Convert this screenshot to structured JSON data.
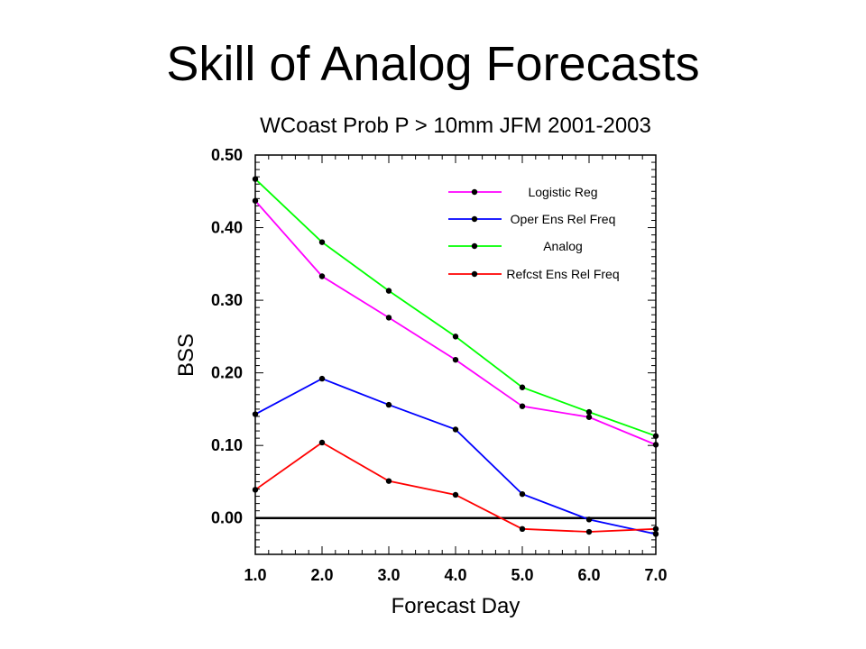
{
  "slide_title": "Skill of Analog Forecasts",
  "chart_data": {
    "type": "line",
    "title": "WCoast Prob P > 10mm JFM 2001-2003",
    "xlabel": "Forecast Day",
    "ylabel": "BSS",
    "xlim": [
      1.0,
      7.0
    ],
    "ylim": [
      -0.05,
      0.5
    ],
    "x_ticks": [
      "1.0",
      "2.0",
      "3.0",
      "4.0",
      "5.0",
      "6.0",
      "7.0"
    ],
    "y_ticks": [
      "0.00",
      "0.10",
      "0.20",
      "0.30",
      "0.40",
      "0.50"
    ],
    "legend_position": "top-right",
    "reference_line": {
      "y": 0.0,
      "color": "#000000"
    },
    "x": [
      1.0,
      2.0,
      3.0,
      4.0,
      5.0,
      6.0,
      7.0
    ],
    "series": [
      {
        "name": "Logistic Reg",
        "color": "#ff00ff",
        "values": [
          0.437,
          0.333,
          0.276,
          0.218,
          0.154,
          0.139,
          0.101
        ]
      },
      {
        "name": "Oper Ens Rel Freq",
        "color": "#0000ff",
        "values": [
          0.143,
          0.192,
          0.156,
          0.122,
          0.033,
          -0.002,
          -0.022
        ]
      },
      {
        "name": "Analog",
        "color": "#00ff00",
        "values": [
          0.467,
          0.38,
          0.313,
          0.25,
          0.18,
          0.146,
          0.113
        ]
      },
      {
        "name": "Refcst Ens Rel Freq",
        "color": "#ff0000",
        "values": [
          0.039,
          0.104,
          0.051,
          0.032,
          -0.015,
          -0.019,
          -0.015
        ]
      }
    ]
  }
}
